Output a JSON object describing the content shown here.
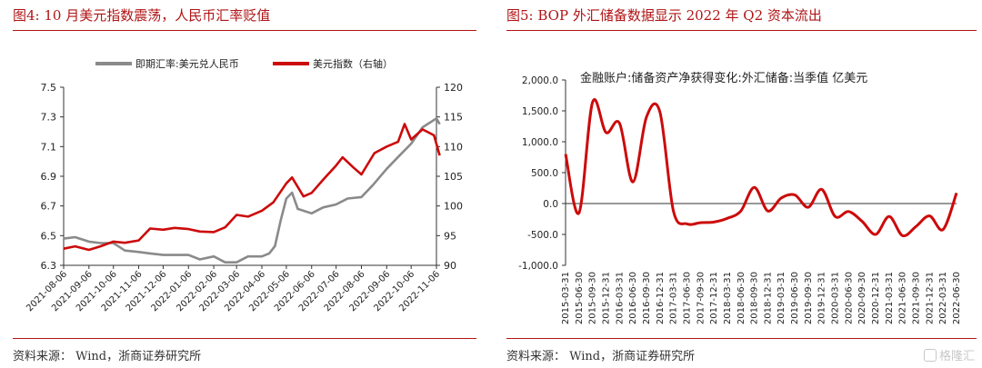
{
  "colors": {
    "accent": "#b01416",
    "series_gray": "#8a8a8a",
    "series_red": "#cc0a0a"
  },
  "left": {
    "title": "图4:   10 月美元指数震荡，人民币汇率贬值",
    "source": "资料来源：  Wind，浙商证券研究所"
  },
  "right": {
    "title": "图5:   BOP 外汇储备数据显示 2022 年 Q2 资本流出",
    "source": "资料来源：  Wind，浙商证券研究所"
  },
  "watermark": {
    "text": "格隆汇"
  },
  "chart_data": [
    {
      "type": "line",
      "title": "",
      "legend_position": "top",
      "x_tick_labels": [
        "2021-08-06",
        "2021-09-06",
        "2021-10-06",
        "2021-11-06",
        "2021-12-06",
        "2022-01-06",
        "2022-02-06",
        "2022-03-06",
        "2022-04-06",
        "2022-05-06",
        "2022-06-06",
        "2022-07-06",
        "2022-08-06",
        "2022-09-06",
        "2022-10-06",
        "2022-11-06"
      ],
      "y_left": {
        "lim": [
          6.3,
          7.5
        ],
        "ticks": [
          "7.5",
          "7.3",
          "7.1",
          "6.9",
          "6.7",
          "6.5",
          "6.3"
        ]
      },
      "y_right": {
        "lim": [
          90,
          120
        ],
        "ticks": [
          "120",
          "115",
          "110",
          "105",
          "100",
          "95",
          "90"
        ]
      },
      "series": [
        {
          "name": "即期汇率:美元兑人民币",
          "axis": "left",
          "color": "#8a8a8a",
          "x": [
            "2021-08-06",
            "2021-08-20",
            "2021-09-06",
            "2021-09-20",
            "2021-10-06",
            "2021-10-20",
            "2021-11-06",
            "2021-11-20",
            "2021-12-06",
            "2021-12-20",
            "2022-01-06",
            "2022-01-20",
            "2022-02-06",
            "2022-02-20",
            "2022-03-06",
            "2022-03-20",
            "2022-04-06",
            "2022-04-15",
            "2022-04-22",
            "2022-04-29",
            "2022-05-06",
            "2022-05-13",
            "2022-05-20",
            "2022-06-06",
            "2022-06-20",
            "2022-07-06",
            "2022-07-20",
            "2022-08-06",
            "2022-08-20",
            "2022-09-06",
            "2022-09-20",
            "2022-10-06",
            "2022-10-20",
            "2022-11-06",
            "2022-11-10"
          ],
          "y": [
            6.48,
            6.49,
            6.46,
            6.45,
            6.45,
            6.4,
            6.39,
            6.38,
            6.37,
            6.37,
            6.37,
            6.34,
            6.36,
            6.32,
            6.32,
            6.36,
            6.36,
            6.38,
            6.43,
            6.6,
            6.75,
            6.79,
            6.68,
            6.65,
            6.69,
            6.71,
            6.75,
            6.76,
            6.84,
            6.95,
            7.03,
            7.12,
            7.23,
            7.29,
            7.25
          ]
        },
        {
          "name": "美元指数（右轴）",
          "axis": "right",
          "color": "#cc0a0a",
          "x": [
            "2021-08-06",
            "2021-08-20",
            "2021-09-06",
            "2021-09-20",
            "2021-10-06",
            "2021-10-20",
            "2021-11-06",
            "2021-11-20",
            "2021-12-06",
            "2021-12-20",
            "2022-01-06",
            "2022-01-20",
            "2022-02-06",
            "2022-02-20",
            "2022-03-06",
            "2022-03-20",
            "2022-04-06",
            "2022-04-20",
            "2022-05-06",
            "2022-05-13",
            "2022-05-27",
            "2022-06-06",
            "2022-06-20",
            "2022-07-06",
            "2022-07-14",
            "2022-07-27",
            "2022-08-06",
            "2022-08-22",
            "2022-09-06",
            "2022-09-20",
            "2022-09-28",
            "2022-10-06",
            "2022-10-20",
            "2022-11-03",
            "2022-11-10"
          ],
          "y": [
            92.8,
            93.2,
            92.6,
            93.2,
            94.0,
            93.8,
            94.2,
            96.2,
            96.0,
            96.3,
            96.1,
            95.7,
            95.6,
            96.4,
            98.5,
            98.2,
            99.2,
            100.6,
            103.8,
            104.8,
            101.6,
            102.2,
            104.4,
            106.8,
            108.2,
            106.5,
            105.3,
            108.9,
            110.0,
            110.8,
            113.8,
            111.2,
            112.9,
            111.9,
            108.5
          ]
        }
      ]
    },
    {
      "type": "line",
      "title": "金融账户:储备资产净获得变化:外汇储备:当季值 亿美元",
      "categories": [
        "2015-03-31",
        "2015-06-30",
        "2015-09-30",
        "2015-12-31",
        "2016-03-31",
        "2016-06-30",
        "2016-09-30",
        "2016-12-31",
        "2017-03-31",
        "2017-06-30",
        "2017-09-30",
        "2017-12-31",
        "2018-03-31",
        "2018-06-30",
        "2018-09-30",
        "2018-12-31",
        "2019-03-31",
        "2019-06-30",
        "2019-09-30",
        "2019-12-31",
        "2020-03-31",
        "2020-06-30",
        "2020-09-30",
        "2020-12-31",
        "2021-03-31",
        "2021-06-30",
        "2021-09-30",
        "2021-12-31",
        "2022-03-31",
        "2022-06-30"
      ],
      "ylim": [
        -1000,
        2000
      ],
      "y_ticks": [
        "2,000.0",
        "1,500.0",
        "1,000.0",
        "500.0",
        "0.0",
        "-500.0",
        "-1,000.0"
      ],
      "series": [
        {
          "name": "",
          "color": "#cc0a0a",
          "values": [
            800,
            -150,
            1640,
            1150,
            1300,
            350,
            1400,
            1480,
            -120,
            -330,
            -310,
            -300,
            -240,
            -120,
            260,
            -120,
            90,
            140,
            -60,
            230,
            -210,
            -130,
            -290,
            -500,
            -210,
            -520,
            -370,
            -200,
            -420,
            170
          ]
        }
      ]
    }
  ]
}
